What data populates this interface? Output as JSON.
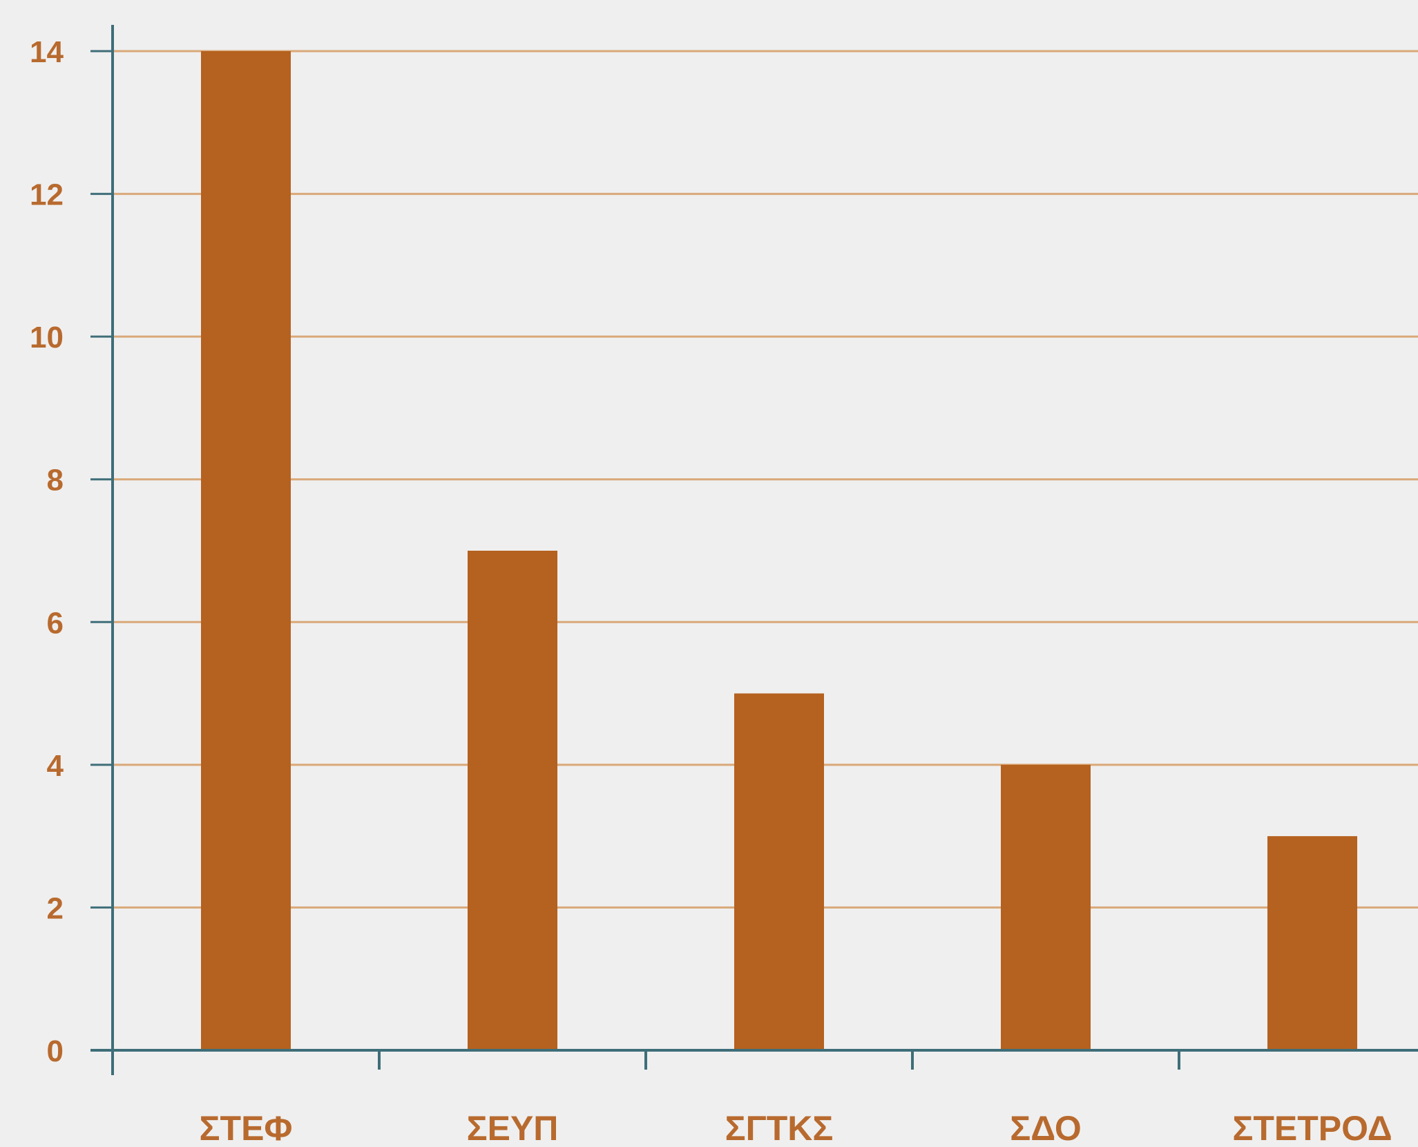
{
  "chart_data": {
    "type": "bar",
    "categories": [
      "ΣΤΕΦ",
      "ΣΕΥΠ",
      "ΣΓΤΚΣ",
      "ΣΔΟ",
      "ΣΤΕΤΡΟΔ"
    ],
    "values": [
      14,
      7,
      5,
      4,
      3
    ],
    "title": "",
    "xlabel": "",
    "ylabel": "",
    "ylim": [
      0,
      14
    ],
    "yticks": [
      "0",
      "2",
      "4",
      "6",
      "8",
      "10",
      "12",
      "14"
    ],
    "grid": true,
    "legend": "none",
    "colors": {
      "bar": "#b5611f",
      "grid": "#d9a878",
      "axis": "#3e6e78",
      "label": "#b86a2e",
      "background": "#efefef"
    }
  }
}
